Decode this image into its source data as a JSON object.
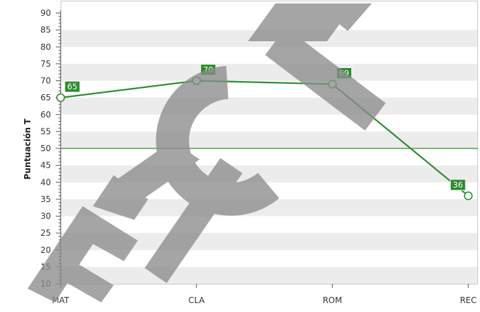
{
  "chart_data": {
    "type": "line",
    "title": "",
    "xlabel": "",
    "ylabel": "Puntuación T",
    "ylim": [
      10,
      90
    ],
    "ytick_step": 5,
    "grid": "alternating horizontal bands",
    "reference_line": {
      "y": 50,
      "color": "#2e8b2e"
    },
    "categories": [
      "MAT",
      "CLA",
      "ROM",
      "REC"
    ],
    "series": [
      {
        "values": [
          65,
          70,
          69,
          36
        ],
        "color": "#2e8b2e"
      }
    ],
    "data_labels": [
      "65",
      "70",
      "69",
      "36"
    ]
  },
  "colors": {
    "band": "#ececec",
    "axis": "#555555",
    "line": "#2e8b2e",
    "label_bg": "#2e8b2e",
    "label_text": "#ffffff",
    "watermark": "#8c8c8c"
  },
  "watermark": {
    "text": "EICT"
  }
}
